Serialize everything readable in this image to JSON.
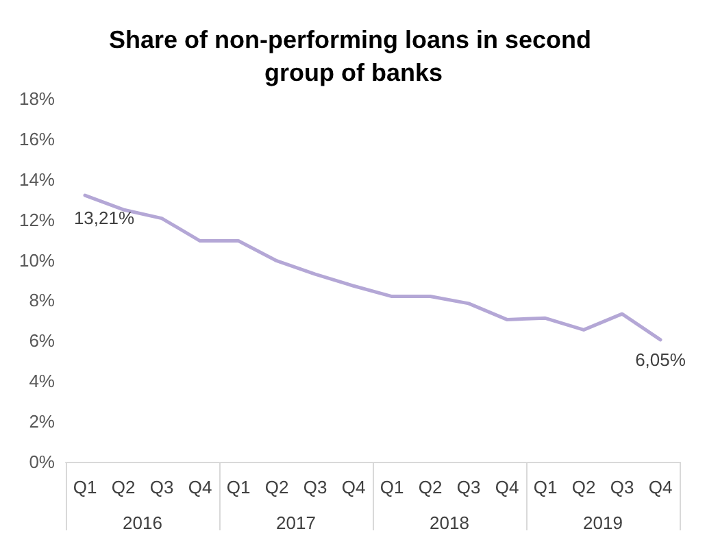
{
  "chart_data": {
    "type": "line",
    "title": "Share of non-performing loans in second group of banks",
    "categories": [
      "Q1",
      "Q2",
      "Q3",
      "Q4",
      "Q1",
      "Q2",
      "Q3",
      "Q4",
      "Q1",
      "Q2",
      "Q3",
      "Q4",
      "Q1",
      "Q2",
      "Q3",
      "Q4"
    ],
    "annotations": [
      "2016",
      "2017",
      "2018",
      "2019"
    ],
    "series": [
      {
        "color": "#b4a7d6",
        "values": [
          13.21,
          12.5,
          12.07,
          10.95,
          10.95,
          9.96,
          9.3,
          8.72,
          8.2,
          8.2,
          7.85,
          7.05,
          7.12,
          6.54,
          7.33,
          6.05
        ],
        "value_labels": [
          "13,21%",
          null,
          null,
          null,
          null,
          null,
          null,
          null,
          null,
          null,
          null,
          null,
          null,
          null,
          null,
          "6,05%"
        ]
      }
    ],
    "ylim": [
      0,
      18
    ],
    "yticks": [
      {
        "value": 0,
        "label": "0%"
      },
      {
        "value": 2,
        "label": "2%"
      },
      {
        "value": 4,
        "label": "4%"
      },
      {
        "value": 6,
        "label": "6%"
      },
      {
        "value": 8,
        "label": "8%"
      },
      {
        "value": 10,
        "label": "10%"
      },
      {
        "value": 12,
        "label": "12%"
      },
      {
        "value": 14,
        "label": "14%"
      },
      {
        "value": 16,
        "label": "16%"
      },
      {
        "value": 18,
        "label": "18%"
      }
    ],
    "grid": false,
    "marker": "none",
    "line_style": "solid"
  }
}
